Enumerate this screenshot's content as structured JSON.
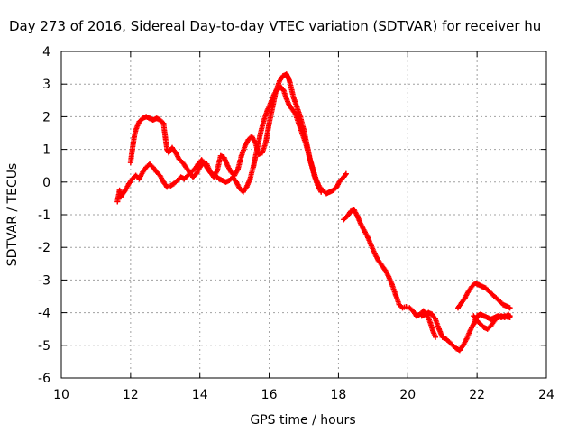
{
  "chart_data": {
    "type": "scatter",
    "title": "Day 273 of 2016, Sidereal Day-to-day VTEC variation (SDTVAR) for receiver hu",
    "xlabel": "GPS time / hours",
    "ylabel": "SDTVAR / TECUs",
    "xlim": [
      10,
      24
    ],
    "ylim": [
      -6,
      4
    ],
    "xticks": [
      "10",
      "12",
      "14",
      "16",
      "18",
      "20",
      "22",
      "24"
    ],
    "yticks": [
      "-6",
      "-5",
      "-4",
      "-3",
      "-2",
      "-1",
      "0",
      "1",
      "2",
      "3",
      "4"
    ],
    "grid": true,
    "marker": "plus",
    "color": "#ff0000",
    "series": [
      {
        "x": [
          11.62,
          11.68,
          11.72,
          11.78,
          11.85,
          11.95,
          12.05,
          12.15,
          12.25,
          12.35,
          12.45,
          12.55,
          12.65,
          12.75,
          12.85,
          12.95,
          13.05,
          13.15,
          13.25,
          13.35,
          13.45,
          13.55,
          13.65,
          13.75,
          13.85,
          13.95,
          14.05,
          14.15,
          14.25,
          14.35,
          14.45,
          14.55,
          14.65,
          14.75,
          14.85,
          14.95,
          15.05,
          15.15,
          15.25,
          15.35,
          15.45,
          15.55,
          15.65,
          15.75,
          15.85,
          15.95,
          16.05,
          16.15,
          16.25,
          16.35,
          16.42,
          16.5,
          16.58,
          16.65,
          16.75,
          16.85,
          16.95,
          17.05,
          17.15,
          17.25,
          17.35,
          17.45,
          17.55,
          17.65,
          17.75,
          17.85,
          17.95,
          18.05,
          18.15,
          18.22
        ],
        "y": [
          -0.6,
          -0.25,
          -0.45,
          -0.35,
          -0.25,
          -0.05,
          0.1,
          0.2,
          0.1,
          0.3,
          0.45,
          0.55,
          0.45,
          0.3,
          0.2,
          0.0,
          -0.15,
          -0.12,
          -0.05,
          0.05,
          0.15,
          0.1,
          0.2,
          0.3,
          0.4,
          0.55,
          0.68,
          0.55,
          0.35,
          0.25,
          0.2,
          0.1,
          0.05,
          0.0,
          0.05,
          0.15,
          0.0,
          -0.2,
          -0.3,
          -0.15,
          0.1,
          0.5,
          1.0,
          1.5,
          1.9,
          2.2,
          2.45,
          2.7,
          2.85,
          2.9,
          2.8,
          2.55,
          2.35,
          2.25,
          2.1,
          1.8,
          1.5,
          1.2,
          0.8,
          0.45,
          0.1,
          -0.15,
          -0.25,
          -0.35,
          -0.3,
          -0.25,
          -0.15,
          0.05,
          0.15,
          0.25
        ]
      },
      {
        "x": [
          12.0,
          12.05,
          12.1,
          12.15,
          12.25,
          12.35,
          12.45,
          12.55,
          12.65,
          12.75,
          12.85,
          12.95,
          13.0,
          13.05,
          13.1,
          13.2,
          13.3,
          13.4,
          13.5,
          13.6,
          13.7,
          13.8,
          13.9,
          14.0,
          14.1,
          14.2,
          14.3,
          14.4,
          14.5,
          14.6,
          14.7,
          14.8,
          14.9,
          15.0,
          15.1,
          15.2,
          15.3,
          15.4,
          15.5,
          15.6,
          15.7,
          15.8,
          15.9,
          16.0,
          16.1,
          16.2,
          16.3,
          16.4,
          16.5,
          16.55,
          16.6,
          16.7,
          16.8,
          16.9,
          17.0,
          17.1,
          17.2,
          17.3,
          17.4,
          17.5
        ],
        "y": [
          0.6,
          1.0,
          1.35,
          1.6,
          1.85,
          1.95,
          2.0,
          1.95,
          1.9,
          1.95,
          1.9,
          1.8,
          1.4,
          1.0,
          0.9,
          1.05,
          0.9,
          0.7,
          0.6,
          0.45,
          0.3,
          0.15,
          0.25,
          0.45,
          0.6,
          0.55,
          0.3,
          0.15,
          0.35,
          0.8,
          0.75,
          0.5,
          0.3,
          0.2,
          0.4,
          0.8,
          1.1,
          1.3,
          1.4,
          1.2,
          0.85,
          0.9,
          1.2,
          1.8,
          2.3,
          2.8,
          3.1,
          3.25,
          3.3,
          3.2,
          3.05,
          2.6,
          2.3,
          2.0,
          1.6,
          1.1,
          0.6,
          0.2,
          -0.1,
          -0.3
        ]
      },
      {
        "x": [
          18.15,
          18.25,
          18.35,
          18.45,
          18.55,
          18.65,
          18.75,
          18.85,
          18.95,
          19.05,
          19.15,
          19.25,
          19.35,
          19.45,
          19.55,
          19.65,
          19.75,
          19.85,
          19.95,
          20.05,
          20.15,
          20.25,
          20.35,
          20.45,
          20.55,
          20.65,
          20.72,
          20.8
        ],
        "y": [
          -1.15,
          -1.05,
          -0.9,
          -0.85,
          -1.05,
          -1.3,
          -1.5,
          -1.7,
          -1.95,
          -2.2,
          -2.4,
          -2.55,
          -2.7,
          -2.9,
          -3.15,
          -3.45,
          -3.75,
          -3.85,
          -3.82,
          -3.85,
          -3.95,
          -4.1,
          -4.05,
          -3.95,
          -4.05,
          -4.3,
          -4.55,
          -4.75
        ]
      },
      {
        "x": [
          20.4,
          20.5,
          20.6,
          20.7,
          20.8,
          20.9,
          21.0,
          21.1,
          21.2,
          21.3,
          21.4,
          21.5,
          21.6,
          21.7,
          21.8,
          21.9,
          22.0,
          22.1,
          22.2,
          22.3,
          22.4,
          22.5,
          22.6,
          22.7,
          22.8,
          22.9,
          22.95
        ],
        "y": [
          -4.1,
          -4.05,
          -4.0,
          -4.05,
          -4.2,
          -4.5,
          -4.75,
          -4.8,
          -4.9,
          -5.0,
          -5.1,
          -5.15,
          -5.0,
          -4.8,
          -4.55,
          -4.35,
          -4.1,
          -4.05,
          -4.1,
          -4.15,
          -4.2,
          -4.15,
          -4.1,
          -4.15,
          -4.1,
          -4.15,
          -4.1
        ]
      },
      {
        "x": [
          21.45,
          21.55,
          21.65,
          21.75,
          21.85,
          21.95,
          22.05,
          22.15,
          22.25,
          22.35,
          22.45,
          22.55,
          22.65,
          22.75,
          22.85,
          22.95
        ],
        "y": [
          -3.85,
          -3.7,
          -3.55,
          -3.35,
          -3.2,
          -3.1,
          -3.15,
          -3.2,
          -3.25,
          -3.35,
          -3.45,
          -3.55,
          -3.65,
          -3.75,
          -3.8,
          -3.85
        ]
      },
      {
        "x": [
          21.9,
          22.0,
          22.1,
          22.2,
          22.3,
          22.4,
          22.5,
          22.6,
          22.7,
          22.8,
          22.9,
          22.95
        ],
        "y": [
          -4.1,
          -4.25,
          -4.35,
          -4.45,
          -4.5,
          -4.4,
          -4.25,
          -4.15,
          -4.1,
          -4.15,
          -4.05,
          -4.15
        ]
      }
    ]
  }
}
